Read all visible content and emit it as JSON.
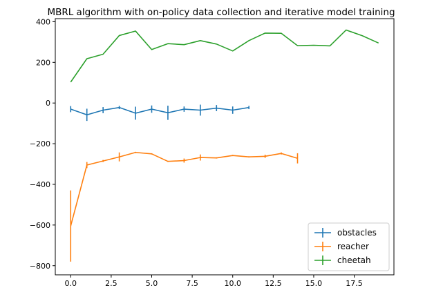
{
  "chart_data": {
    "type": "line",
    "title": "MBRL algorithm with on-policy data collection and iterative model training",
    "xlabel": "",
    "ylabel": "",
    "xlim": [
      -0.95,
      19.95
    ],
    "ylim": [
      -845,
      415
    ],
    "xticks": [
      0.0,
      2.5,
      5.0,
      7.5,
      10.0,
      12.5,
      15.0,
      17.5
    ],
    "xtick_labels": [
      "0.0",
      "2.5",
      "5.0",
      "7.5",
      "10.0",
      "12.5",
      "15.0",
      "17.5"
    ],
    "yticks": [
      400,
      200,
      0,
      -200,
      -400,
      -600,
      -800
    ],
    "ytick_labels": [
      "400",
      "200",
      "0",
      "−200",
      "−400",
      "−600",
      "−800"
    ],
    "grid": false,
    "legend_position": "lower-right",
    "series": [
      {
        "name": "obstacles",
        "color": "#1f77b4",
        "x": [
          0,
          1,
          2,
          3,
          4,
          5,
          6,
          7,
          8,
          9,
          10,
          11
        ],
        "y": [
          -30,
          -58,
          -35,
          -22,
          -50,
          -30,
          -48,
          -30,
          -35,
          -25,
          -35,
          -22
        ],
        "yerr": [
          15,
          30,
          15,
          8,
          32,
          18,
          35,
          13,
          27,
          15,
          18,
          8
        ]
      },
      {
        "name": "reacher",
        "color": "#ff7f0e",
        "x": [
          0,
          1,
          2,
          3,
          4,
          5,
          6,
          7,
          8,
          9,
          10,
          11,
          12,
          13,
          14
        ],
        "y": [
          -605,
          -305,
          -285,
          -265,
          -243,
          -250,
          -287,
          -283,
          -268,
          -270,
          -258,
          -265,
          -262,
          -248,
          -272
        ],
        "yerr": [
          175,
          15,
          5,
          22,
          3,
          3,
          3,
          10,
          15,
          3,
          3,
          3,
          8,
          5,
          25
        ]
      },
      {
        "name": "cheetah",
        "color": "#2ca02c",
        "x": [
          0,
          1,
          2,
          3,
          4,
          5,
          6,
          7,
          8,
          9,
          10,
          11,
          12,
          13,
          14,
          15,
          16,
          17,
          18,
          19
        ],
        "y": [
          103,
          218,
          240,
          332,
          354,
          263,
          292,
          287,
          307,
          290,
          256,
          307,
          344,
          343,
          282,
          284,
          281,
          359,
          331,
          295
        ],
        "yerr": [
          0,
          0,
          0,
          0,
          0,
          0,
          0,
          0,
          0,
          0,
          0,
          0,
          0,
          0,
          0,
          0,
          0,
          0,
          0,
          0
        ]
      }
    ]
  }
}
